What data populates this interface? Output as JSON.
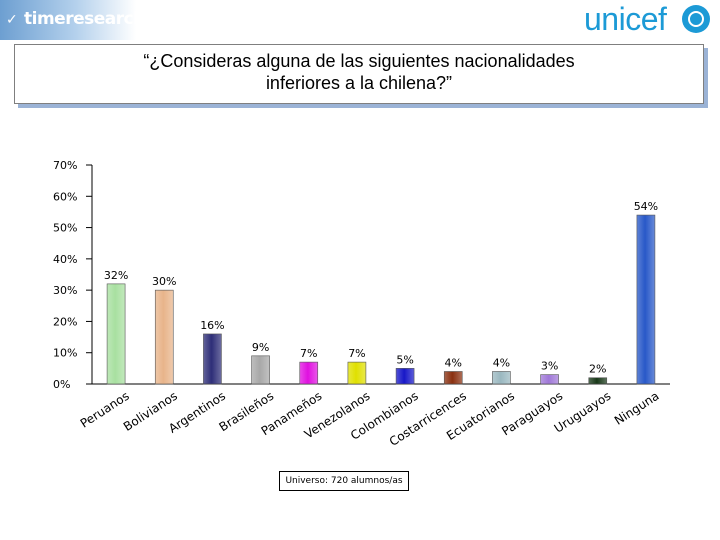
{
  "header": {
    "left_logo_text": "timeresearch",
    "right_logo_text": "unicef"
  },
  "title": "“¿Consideras alguna de las siguientes nacionalidades\ninferiores a la chilena?”",
  "footnote": "Universo: 720 alumnos/as",
  "chart_data": {
    "type": "bar",
    "categories": [
      "Peruanos",
      "Bolivianos",
      "Argentinos",
      "Brasileños",
      "Panameños",
      "Venezolanos",
      "Colombianos",
      "Costarricences",
      "Ecuatorianos",
      "Paraguayos",
      "Uruguayos",
      "Ninguna"
    ],
    "values": [
      32,
      30,
      16,
      9,
      7,
      7,
      5,
      4,
      4,
      3,
      2,
      54
    ],
    "data_labels": [
      "32%",
      "30%",
      "16%",
      "9%",
      "7%",
      "7%",
      "5%",
      "4%",
      "4%",
      "3%",
      "2%",
      "54%"
    ],
    "colors": [
      "#a8e0a0",
      "#e8b48a",
      "#2e2e78",
      "#a8a8a8",
      "#e010e0",
      "#e0e000",
      "#1818c8",
      "#8a3010",
      "#9ab8c0",
      "#a078d8",
      "#183818",
      "#2858c8"
    ],
    "ylim": [
      0,
      70
    ],
    "yticks": [
      0,
      10,
      20,
      30,
      40,
      50,
      60,
      70
    ],
    "ytick_labels": [
      "0%",
      "10%",
      "20%",
      "30%",
      "40%",
      "50%",
      "60%",
      "70%"
    ],
    "grid": false
  }
}
